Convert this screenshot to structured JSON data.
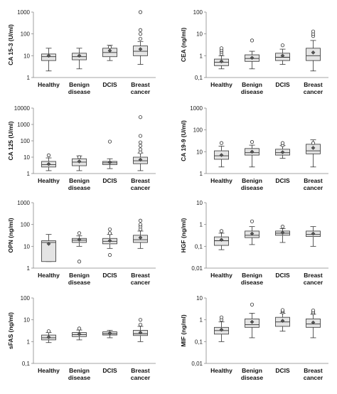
{
  "chart_data": [
    {
      "type": "box",
      "ylabel": "CA 15-3 (U/ml)",
      "scale": "log",
      "ylim": [
        1,
        1000
      ],
      "yticks": [
        "1",
        "10",
        "100",
        "1000"
      ],
      "categories": [
        "Healthy",
        "Benign|disease",
        "DCIS",
        "Breast|cancer"
      ],
      "boxes": [
        {
          "min": 2,
          "q1": 6,
          "median": 9,
          "q3": 12,
          "max": 22,
          "mean": 10,
          "outliers": []
        },
        {
          "min": 2.5,
          "q1": 6.5,
          "median": 9,
          "q3": 13,
          "max": 22,
          "mean": 10,
          "outliers": []
        },
        {
          "min": 6,
          "q1": 9,
          "median": 14,
          "q3": 22,
          "max": 30,
          "mean": 17,
          "outliers": [
            25
          ]
        },
        {
          "min": 4,
          "q1": 10,
          "median": 16,
          "q3": 28,
          "max": 45,
          "mean": 20,
          "outliers": [
            60,
            100,
            150,
            1000
          ]
        }
      ]
    },
    {
      "type": "box",
      "ylabel": "CEA (ng/ml)",
      "scale": "log",
      "ylim": [
        0.1,
        100
      ],
      "yticks": [
        "0,1",
        "1",
        "10",
        "100"
      ],
      "categories": [
        "Healthy",
        "Benign|disease",
        "DCIS",
        "Breast|cancer"
      ],
      "boxes": [
        {
          "min": 0.25,
          "q1": 0.35,
          "median": 0.5,
          "q3": 0.7,
          "max": 1.0,
          "mean": 0.55,
          "outliers": [
            1.2,
            1.5,
            1.8,
            2.2
          ]
        },
        {
          "min": 0.25,
          "q1": 0.55,
          "median": 0.75,
          "q3": 1.1,
          "max": 1.6,
          "mean": 0.8,
          "outliers": [
            5
          ]
        },
        {
          "min": 0.4,
          "q1": 0.6,
          "median": 0.85,
          "q3": 1.3,
          "max": 2.0,
          "mean": 1.0,
          "outliers": [
            3
          ]
        },
        {
          "min": 0.2,
          "q1": 0.6,
          "median": 1.0,
          "q3": 2.2,
          "max": 5,
          "mean": 1.4,
          "outliers": [
            8,
            10,
            13
          ]
        }
      ]
    },
    {
      "type": "box",
      "ylabel": "CA 125  (U/ml)",
      "scale": "log",
      "ylim": [
        1,
        10000
      ],
      "yticks": [
        "1",
        "10",
        "100",
        "1000",
        "10000"
      ],
      "categories": [
        "Healthy",
        "Benign|disease",
        "DCIS",
        "Breast|cancer"
      ],
      "boxes": [
        {
          "min": 1.5,
          "q1": 2.5,
          "median": 3.5,
          "q3": 5.5,
          "max": 9,
          "mean": 3.8,
          "outliers": [
            13
          ]
        },
        {
          "min": 1.5,
          "q1": 3,
          "median": 5,
          "q3": 8,
          "max": 12,
          "mean": 5.5,
          "outliers": [
            10
          ]
        },
        {
          "min": 2,
          "q1": 3.5,
          "median": 4.5,
          "q3": 5.5,
          "max": 8,
          "mean": 4.8,
          "outliers": [
            90
          ]
        },
        {
          "min": 1.5,
          "q1": 4,
          "median": 6,
          "q3": 10,
          "max": 18,
          "mean": 7,
          "outliers": [
            20,
            30,
            50,
            80,
            200,
            2800
          ]
        }
      ]
    },
    {
      "type": "box",
      "ylabel": "CA 19-9  (U/ml)",
      "scale": "log",
      "ylim": [
        1,
        1000
      ],
      "yticks": [
        "1",
        "10",
        "100",
        "1000"
      ],
      "categories": [
        "Healthy",
        "Benign|disease",
        "DCIS",
        "Breast|cancer"
      ],
      "boxes": [
        {
          "min": 2,
          "q1": 4.5,
          "median": 6.5,
          "q3": 11,
          "max": 18,
          "mean": 7,
          "outliers": [
            25
          ]
        },
        {
          "min": 2,
          "q1": 7,
          "median": 9,
          "q3": 14,
          "max": 20,
          "mean": 10,
          "outliers": [
            28
          ]
        },
        {
          "min": 5,
          "q1": 7,
          "median": 9,
          "q3": 13,
          "max": 19,
          "mean": 9.5,
          "outliers": [
            20,
            25
          ]
        },
        {
          "min": 2,
          "q1": 8,
          "median": 11,
          "q3": 22,
          "max": 35,
          "mean": 15,
          "outliers": [
            25
          ]
        }
      ]
    },
    {
      "type": "box",
      "ylabel": "OPN (ng/ml)",
      "scale": "log",
      "ylim": [
        1,
        1000
      ],
      "yticks": [
        "1",
        "10",
        "100",
        "1000"
      ],
      "categories": [
        "Healthy",
        "Benign|disease",
        "DCIS",
        "Breast|cancer"
      ],
      "boxes": [
        {
          "min": 2,
          "q1": 2,
          "median": 15,
          "q3": 18,
          "max": 35,
          "mean": 13,
          "outliers": []
        },
        {
          "min": 10,
          "q1": 15,
          "median": 19,
          "q3": 23,
          "max": 30,
          "mean": 20,
          "outliers": [
            2,
            40
          ]
        },
        {
          "min": 8,
          "q1": 13,
          "median": 17,
          "q3": 23,
          "max": 35,
          "mean": 18,
          "outliers": [
            4,
            40,
            60
          ]
        },
        {
          "min": 8,
          "q1": 15,
          "median": 20,
          "q3": 32,
          "max": 50,
          "mean": 25,
          "outliers": [
            60,
            80,
            100,
            150
          ]
        }
      ]
    },
    {
      "type": "box",
      "ylabel": "HGF (ng/ml)",
      "scale": "log",
      "ylim": [
        0.01,
        10
      ],
      "yticks": [
        "0,01",
        "0,1",
        "1",
        "10"
      ],
      "categories": [
        "Healthy",
        "Benign|disease",
        "DCIS",
        "Breast|cancer"
      ],
      "boxes": [
        {
          "min": 0.07,
          "q1": 0.11,
          "median": 0.18,
          "q3": 0.27,
          "max": 0.4,
          "mean": 0.2,
          "outliers": [
            0.5
          ]
        },
        {
          "min": 0.12,
          "q1": 0.25,
          "median": 0.32,
          "q3": 0.5,
          "max": 0.8,
          "mean": 0.38,
          "outliers": [
            1.4
          ]
        },
        {
          "min": 0.15,
          "q1": 0.32,
          "median": 0.4,
          "q3": 0.5,
          "max": 0.65,
          "mean": 0.42,
          "outliers": [
            0.8
          ]
        },
        {
          "min": 0.1,
          "q1": 0.28,
          "median": 0.35,
          "q3": 0.5,
          "max": 0.8,
          "mean": 0.38,
          "outliers": []
        }
      ]
    },
    {
      "type": "box",
      "ylabel": "sFAS (ng/ml)",
      "scale": "log",
      "ylim": [
        0.1,
        100
      ],
      "yticks": [
        "0,1",
        "1",
        "10",
        "100"
      ],
      "categories": [
        "Healthy",
        "Benign|disease",
        "DCIS",
        "Breast|cancer"
      ],
      "boxes": [
        {
          "min": 0.9,
          "q1": 1.2,
          "median": 1.5,
          "q3": 2.0,
          "max": 2.6,
          "mean": 1.6,
          "outliers": [
            3
          ]
        },
        {
          "min": 1.2,
          "q1": 1.7,
          "median": 2.1,
          "q3": 2.6,
          "max": 3.4,
          "mean": 2.2,
          "outliers": [
            4
          ]
        },
        {
          "min": 1.5,
          "q1": 2.0,
          "median": 2.3,
          "q3": 2.8,
          "max": 3.3,
          "mean": 2.4,
          "outliers": []
        },
        {
          "min": 1.0,
          "q1": 1.9,
          "median": 2.3,
          "q3": 3.3,
          "max": 5,
          "mean": 2.6,
          "outliers": [
            6,
            10
          ]
        }
      ]
    },
    {
      "type": "box",
      "ylabel": "MIF (ng/ml)",
      "scale": "log",
      "ylim": [
        0.01,
        10
      ],
      "yticks": [
        "0,01",
        "0,1",
        "1",
        "10"
      ],
      "categories": [
        "Healthy",
        "Benign|disease",
        "DCIS",
        "Breast|cancer"
      ],
      "boxes": [
        {
          "min": 0.1,
          "q1": 0.22,
          "median": 0.32,
          "q3": 0.45,
          "max": 0.8,
          "mean": 0.35,
          "outliers": [
            1.0,
            1.3
          ]
        },
        {
          "min": 0.15,
          "q1": 0.45,
          "median": 0.6,
          "q3": 1.1,
          "max": 2.0,
          "mean": 0.8,
          "outliers": [
            5
          ]
        },
        {
          "min": 0.3,
          "q1": 0.5,
          "median": 0.8,
          "q3": 1.3,
          "max": 2.0,
          "mean": 0.9,
          "outliers": [
            2.2,
            2.5,
            2.8
          ]
        },
        {
          "min": 0.15,
          "q1": 0.45,
          "median": 0.65,
          "q3": 1.1,
          "max": 1.8,
          "mean": 0.75,
          "outliers": [
            2.0,
            2.3,
            2.7
          ]
        }
      ]
    }
  ]
}
